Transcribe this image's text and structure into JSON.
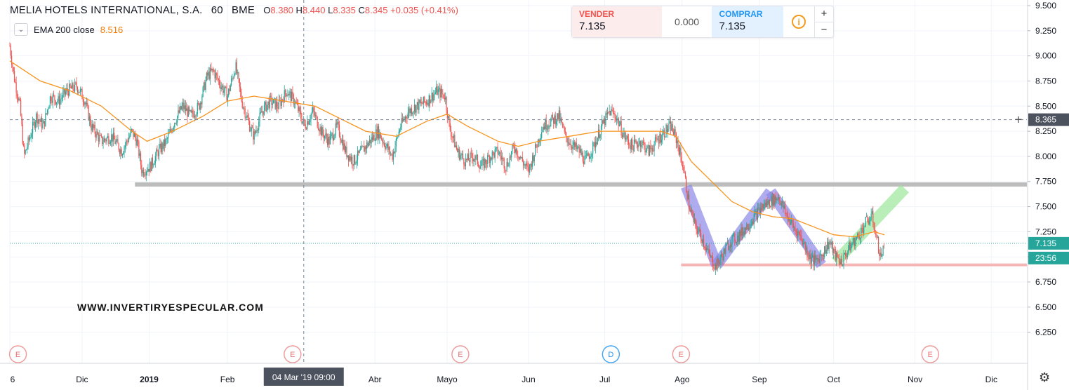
{
  "header": {
    "symbol": "MELIA HOTELS INTERNATIONAL, S.A.",
    "interval": "60",
    "exchange": "BME",
    "o_label": "O",
    "o_value": "8.380",
    "h_label": "H",
    "h_value": "8.440",
    "l_label": "L",
    "l_value": "8.335",
    "c_label": "C",
    "c_value": "8.345",
    "change": "+0.035 (+0.41%)"
  },
  "indicator": {
    "label": "EMA 200 close",
    "value": "8.516",
    "collapse_icon": "chevron-down-icon"
  },
  "trade_panel": {
    "sell_label": "VENDER",
    "sell_value": "7.135",
    "spread": "0.000",
    "buy_label": "COMPRAR",
    "buy_value": "7.135",
    "info_icon": "info-icon",
    "plus": "+",
    "minus": "−"
  },
  "watermark": "WWW.INVERTIRYESPECULAR.COM",
  "settings_icon": "gear-icon",
  "colors": {
    "candle_up": "#26a69a",
    "candle_down": "#ef5350",
    "ema": "#f7931e",
    "support": "#bdbdbd",
    "low_line": "#f7b6b6",
    "channel_blue": "#8c87e8",
    "channel_green": "#9be79b",
    "axis_text": "#131722"
  },
  "chart_data": {
    "type": "candlestick",
    "ylim": [
      6.15,
      9.5
    ],
    "y_ticks": [
      "9.500",
      "9.250",
      "9.000",
      "8.750",
      "8.500",
      "8.250",
      "8.000",
      "7.750",
      "7.500",
      "7.250",
      "7.000",
      "6.750",
      "6.500",
      "6.250"
    ],
    "x_ticks": [
      {
        "label": "6",
        "t": 0
      },
      {
        "label": "Dic",
        "t": 0.071
      },
      {
        "label": "2019",
        "t": 0.137
      },
      {
        "label": "Feb",
        "t": 0.214
      },
      {
        "label": "Abr",
        "t": 0.359
      },
      {
        "label": "Mayo",
        "t": 0.43
      },
      {
        "label": "Jun",
        "t": 0.51
      },
      {
        "label": "Jul",
        "t": 0.585
      },
      {
        "label": "Ago",
        "t": 0.661
      },
      {
        "label": "Sep",
        "t": 0.737
      },
      {
        "label": "Oct",
        "t": 0.81
      },
      {
        "label": "Nov",
        "t": 0.89
      },
      {
        "label": "Dic",
        "t": 0.965
      }
    ],
    "crosshair_label": "04 Mar '19  09:00",
    "crosshair_t": 0.289,
    "crosshair_price": "8.365",
    "crosshair_value": 8.365,
    "last_price": "7.135",
    "last_value": 7.135,
    "countdown": "23:56",
    "events": [
      {
        "label": "E",
        "t": 0.008
      },
      {
        "label": "E",
        "t": 0.278
      },
      {
        "label": "E",
        "t": 0.443
      },
      {
        "label": "D",
        "t": 0.591
      },
      {
        "label": "E",
        "t": 0.66
      },
      {
        "label": "E",
        "t": 0.905
      }
    ],
    "close_path": [
      [
        0,
        9.1
      ],
      [
        0.004,
        8.8
      ],
      [
        0.01,
        8.5
      ],
      [
        0.014,
        8.0
      ],
      [
        0.02,
        8.2
      ],
      [
        0.026,
        8.4
      ],
      [
        0.033,
        8.3
      ],
      [
        0.04,
        8.6
      ],
      [
        0.048,
        8.55
      ],
      [
        0.056,
        8.65
      ],
      [
        0.066,
        8.7
      ],
      [
        0.074,
        8.55
      ],
      [
        0.08,
        8.3
      ],
      [
        0.09,
        8.15
      ],
      [
        0.1,
        8.2
      ],
      [
        0.11,
        8.05
      ],
      [
        0.12,
        8.25
      ],
      [
        0.125,
        8.15
      ],
      [
        0.13,
        7.85
      ],
      [
        0.138,
        7.9
      ],
      [
        0.146,
        8.05
      ],
      [
        0.154,
        8.15
      ],
      [
        0.162,
        8.35
      ],
      [
        0.17,
        8.5
      ],
      [
        0.178,
        8.4
      ],
      [
        0.186,
        8.5
      ],
      [
        0.194,
        8.8
      ],
      [
        0.2,
        8.85
      ],
      [
        0.208,
        8.7
      ],
      [
        0.214,
        8.6
      ],
      [
        0.222,
        8.9
      ],
      [
        0.228,
        8.55
      ],
      [
        0.236,
        8.3
      ],
      [
        0.24,
        8.2
      ],
      [
        0.248,
        8.45
      ],
      [
        0.256,
        8.55
      ],
      [
        0.264,
        8.5
      ],
      [
        0.272,
        8.65
      ],
      [
        0.28,
        8.55
      ],
      [
        0.29,
        8.3
      ],
      [
        0.298,
        8.45
      ],
      [
        0.306,
        8.25
      ],
      [
        0.314,
        8.15
      ],
      [
        0.322,
        8.3
      ],
      [
        0.33,
        8.05
      ],
      [
        0.338,
        7.95
      ],
      [
        0.346,
        8.05
      ],
      [
        0.354,
        8.15
      ],
      [
        0.362,
        8.25
      ],
      [
        0.37,
        8.1
      ],
      [
        0.376,
        8.0
      ],
      [
        0.384,
        8.3
      ],
      [
        0.392,
        8.45
      ],
      [
        0.4,
        8.5
      ],
      [
        0.41,
        8.55
      ],
      [
        0.42,
        8.65
      ],
      [
        0.428,
        8.6
      ],
      [
        0.432,
        8.3
      ],
      [
        0.44,
        8.05
      ],
      [
        0.448,
        7.95
      ],
      [
        0.456,
        8.0
      ],
      [
        0.464,
        7.9
      ],
      [
        0.472,
        8.0
      ],
      [
        0.48,
        8.05
      ],
      [
        0.488,
        7.9
      ],
      [
        0.496,
        8.1
      ],
      [
        0.504,
        7.95
      ],
      [
        0.51,
        7.85
      ],
      [
        0.516,
        8.05
      ],
      [
        0.524,
        8.3
      ],
      [
        0.532,
        8.35
      ],
      [
        0.54,
        8.4
      ],
      [
        0.546,
        8.2
      ],
      [
        0.554,
        8.1
      ],
      [
        0.56,
        8.05
      ],
      [
        0.566,
        7.95
      ],
      [
        0.574,
        8.1
      ],
      [
        0.582,
        8.3
      ],
      [
        0.59,
        8.45
      ],
      [
        0.596,
        8.4
      ],
      [
        0.604,
        8.2
      ],
      [
        0.612,
        8.1
      ],
      [
        0.62,
        8.15
      ],
      [
        0.628,
        8.05
      ],
      [
        0.636,
        8.15
      ],
      [
        0.644,
        8.25
      ],
      [
        0.65,
        8.3
      ],
      [
        0.656,
        8.15
      ],
      [
        0.662,
        7.9
      ],
      [
        0.668,
        7.5
      ],
      [
        0.674,
        7.3
      ],
      [
        0.68,
        7.2
      ],
      [
        0.688,
        7.0
      ],
      [
        0.694,
        6.9
      ],
      [
        0.7,
        7.0
      ],
      [
        0.708,
        7.15
      ],
      [
        0.716,
        7.2
      ],
      [
        0.724,
        7.3
      ],
      [
        0.732,
        7.4
      ],
      [
        0.74,
        7.5
      ],
      [
        0.748,
        7.55
      ],
      [
        0.756,
        7.6
      ],
      [
        0.762,
        7.45
      ],
      [
        0.77,
        7.3
      ],
      [
        0.778,
        7.2
      ],
      [
        0.786,
        7.0
      ],
      [
        0.792,
        6.95
      ],
      [
        0.8,
        7.05
      ],
      [
        0.806,
        7.15
      ],
      [
        0.812,
        7.0
      ],
      [
        0.818,
        6.95
      ],
      [
        0.826,
        7.1
      ],
      [
        0.834,
        7.2
      ],
      [
        0.842,
        7.35
      ],
      [
        0.848,
        7.4
      ],
      [
        0.852,
        7.2
      ],
      [
        0.856,
        7.0
      ],
      [
        0.86,
        7.1
      ]
    ],
    "ema_path": [
      [
        0,
        8.95
      ],
      [
        0.03,
        8.75
      ],
      [
        0.06,
        8.65
      ],
      [
        0.09,
        8.5
      ],
      [
        0.12,
        8.25
      ],
      [
        0.135,
        8.15
      ],
      [
        0.16,
        8.25
      ],
      [
        0.19,
        8.4
      ],
      [
        0.214,
        8.55
      ],
      [
        0.24,
        8.6
      ],
      [
        0.27,
        8.55
      ],
      [
        0.3,
        8.5
      ],
      [
        0.33,
        8.35
      ],
      [
        0.35,
        8.25
      ],
      [
        0.38,
        8.2
      ],
      [
        0.41,
        8.35
      ],
      [
        0.43,
        8.42
      ],
      [
        0.45,
        8.3
      ],
      [
        0.48,
        8.15
      ],
      [
        0.5,
        8.1
      ],
      [
        0.52,
        8.15
      ],
      [
        0.55,
        8.2
      ],
      [
        0.58,
        8.25
      ],
      [
        0.61,
        8.25
      ],
      [
        0.64,
        8.25
      ],
      [
        0.655,
        8.2
      ],
      [
        0.67,
        7.95
      ],
      [
        0.69,
        7.75
      ],
      [
        0.71,
        7.55
      ],
      [
        0.73,
        7.45
      ],
      [
        0.75,
        7.4
      ],
      [
        0.77,
        7.38
      ],
      [
        0.79,
        7.3
      ],
      [
        0.81,
        7.22
      ],
      [
        0.83,
        7.2
      ],
      [
        0.85,
        7.25
      ],
      [
        0.86,
        7.22
      ]
    ],
    "support_line": {
      "value": 7.72,
      "t_start": 0.123,
      "t_end": 1.0
    },
    "low_line": {
      "value": 6.92,
      "t_start": 0.66,
      "t_end": 1.0
    },
    "channels": [
      {
        "color": "blue",
        "points": [
          [
            0.665,
            7.7
          ],
          [
            0.695,
            6.92
          ]
        ]
      },
      {
        "color": "blue",
        "points": [
          [
            0.695,
            6.92
          ],
          [
            0.748,
            7.65
          ]
        ]
      },
      {
        "color": "blue",
        "points": [
          [
            0.748,
            7.65
          ],
          [
            0.798,
            6.92
          ]
        ]
      },
      {
        "color": "green",
        "points": [
          [
            0.812,
            6.95
          ],
          [
            0.88,
            7.68
          ]
        ]
      }
    ]
  }
}
